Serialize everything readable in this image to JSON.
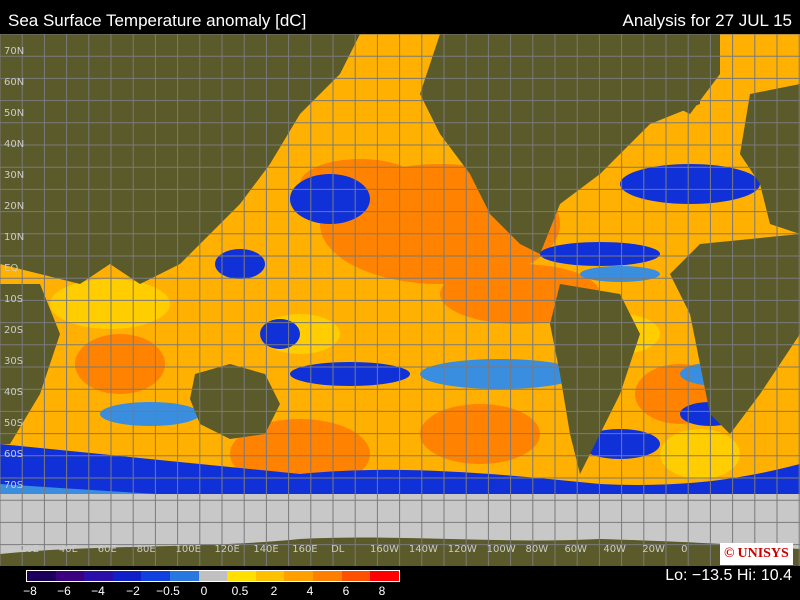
{
  "header": {
    "title": "Sea Surface Temperature anomaly [dC]",
    "analysis": "Analysis for 27 JUL 15"
  },
  "colors": {
    "ocean_warm": "#ffb000",
    "ocean_hot": "#ff7a00",
    "ocean_cold": "#1030d8",
    "ocean_cool": "#3a8ee0",
    "ice": "#c8c8c8",
    "land": "#5a5a2a",
    "grid": "#7a7a7a"
  },
  "legend": {
    "colors": [
      "#1a0058",
      "#3a0080",
      "#2a10a8",
      "#1020c8",
      "#1040e0",
      "#2878e0",
      "#c0c0c0",
      "#ffe000",
      "#ffc000",
      "#ffa000",
      "#ff8000",
      "#ff5000",
      "#ff0000"
    ],
    "ticks": [
      "−8",
      "−6",
      "−4",
      "−2",
      "−0.5",
      "0",
      "0.5",
      "2",
      "4",
      "6",
      "8"
    ]
  },
  "axes": {
    "lat_labels": [
      "70N",
      "60N",
      "50N",
      "40N",
      "30N",
      "20N",
      "10N",
      "EQ",
      "10S",
      "20S",
      "30S",
      "40S",
      "50S",
      "60S",
      "70S"
    ],
    "lon_labels": [
      "20E",
      "40E",
      "60E",
      "80E",
      "100E",
      "120E",
      "140E",
      "160E",
      "DL",
      "160W",
      "140W",
      "120W",
      "100W",
      "80W",
      "60W",
      "40W",
      "20W",
      "0"
    ]
  },
  "stats": {
    "lo_label": "Lo:",
    "lo": "−13.5",
    "hi_label": "Hi:",
    "hi": "10.4"
  },
  "logo": {
    "copyright": "©",
    "name": "UNISYS"
  }
}
